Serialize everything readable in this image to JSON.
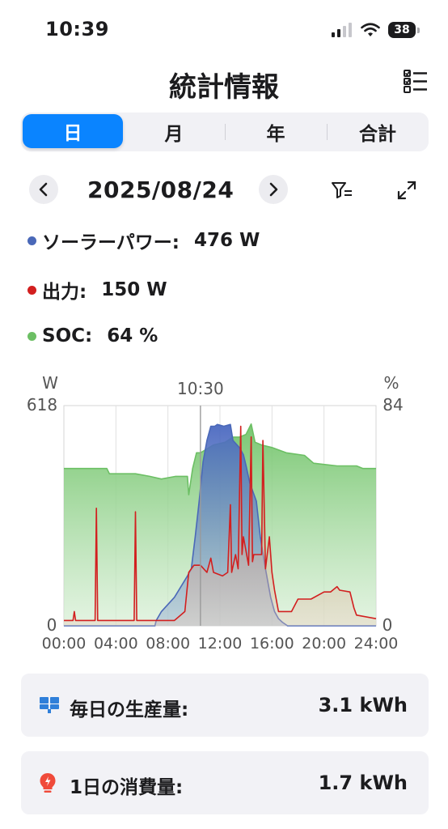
{
  "status": {
    "time": "10:39",
    "battery": "38"
  },
  "header": {
    "title": "統計情報"
  },
  "tabs": [
    {
      "label": "日",
      "active": true
    },
    {
      "label": "月",
      "active": false
    },
    {
      "label": "年",
      "active": false
    },
    {
      "label": "合計",
      "active": false
    }
  ],
  "date_nav": {
    "date": "2025/08/24"
  },
  "stats": [
    {
      "label": "ソーラーパワー:",
      "value": "476 W",
      "color": "#4a68b8"
    },
    {
      "label": "出力:",
      "value": "150 W",
      "color": "#d21f1f"
    },
    {
      "label": "SOC:",
      "value": "64 %",
      "color": "#6cbf64"
    }
  ],
  "chart_data": {
    "type": "area",
    "left_unit": "W",
    "right_unit": "%",
    "left_max_label": "618",
    "right_max_label": "84",
    "left_min_label": "0",
    "right_min_label": "0",
    "ylim_left": [
      0,
      618
    ],
    "ylim_right": [
      0,
      84
    ],
    "xlim": [
      0,
      24
    ],
    "cursor_label": "10:30",
    "cursor_x": 10.5,
    "x_tick_labels": [
      "00:00",
      "04:00",
      "08:00",
      "12:00",
      "16:00",
      "20:00",
      "24:00"
    ],
    "x_ticks": [
      0,
      4,
      8,
      12,
      16,
      20,
      24
    ],
    "series": [
      {
        "name": "SOC",
        "color": "#6cbf64",
        "axis": "right",
        "x": [
          0,
          3.3,
          3.5,
          5.5,
          6.6,
          7.5,
          8.6,
          9.5,
          9.6,
          9.9,
          10.2,
          10.5,
          11.5,
          12.4,
          13.0,
          13.5,
          14.0,
          14.4,
          14.7,
          15.2,
          16.0,
          17.1,
          18.5,
          19.2,
          21.0,
          22.5,
          23.0,
          24
        ],
        "y": [
          60,
          60,
          58,
          58,
          57,
          56,
          57,
          57,
          50,
          60,
          66,
          66,
          69,
          70,
          72,
          72,
          73,
          77,
          70,
          69,
          68,
          66,
          65,
          62,
          61,
          61,
          60,
          60
        ]
      },
      {
        "name": "ソーラーパワー",
        "color": "#4a68b8",
        "axis": "left",
        "x": [
          0,
          7.0,
          7.1,
          7.5,
          8.0,
          8.5,
          9.0,
          9.5,
          9.8,
          10.1,
          10.4,
          10.7,
          11.0,
          11.3,
          11.6,
          11.8,
          12.3,
          12.8,
          13.0,
          13.5,
          13.8,
          14.0,
          14.3,
          14.8,
          15.1,
          15.5,
          15.9,
          16.2,
          16.5,
          16.8,
          17.2,
          24
        ],
        "y": [
          0,
          0,
          15,
          40,
          60,
          80,
          110,
          140,
          160,
          250,
          350,
          460,
          520,
          560,
          560,
          565,
          560,
          565,
          520,
          500,
          480,
          450,
          400,
          350,
          250,
          160,
          80,
          40,
          20,
          10,
          0,
          0
        ]
      },
      {
        "name": "出力",
        "color": "#d21f1f",
        "axis": "left",
        "x": [
          0,
          0.7,
          0.8,
          0.9,
          2.4,
          2.5,
          2.6,
          5.4,
          5.5,
          5.6,
          8.5,
          9.3,
          9.6,
          10.0,
          10.5,
          11.0,
          11.3,
          11.5,
          12.2,
          12.6,
          12.8,
          12.9,
          13.2,
          13.4,
          13.6,
          13.7,
          13.8,
          14.2,
          14.4,
          14.5,
          14.6,
          15.0,
          15.2,
          15.3,
          15.5,
          15.8,
          16.0,
          16.2,
          16.5,
          17.0,
          17.5,
          18.0,
          19.0,
          20.0,
          20.5,
          21.0,
          21.2,
          22.0,
          22.3,
          22.5,
          24
        ],
        "y": [
          15,
          15,
          40,
          15,
          15,
          330,
          15,
          15,
          320,
          15,
          15,
          40,
          150,
          170,
          170,
          150,
          190,
          150,
          140,
          150,
          340,
          150,
          200,
          160,
          560,
          200,
          250,
          170,
          530,
          180,
          200,
          200,
          200,
          520,
          160,
          250,
          150,
          100,
          40,
          40,
          40,
          75,
          75,
          95,
          95,
          110,
          100,
          95,
          50,
          30,
          20
        ]
      }
    ]
  },
  "daily": [
    {
      "label": "毎日の生産量:",
      "value": "3.1 kWh",
      "icon": "solar-panel-icon"
    },
    {
      "label": "1日の消費量:",
      "value": "1.7 kWh",
      "icon": "lightbulb-icon"
    }
  ]
}
